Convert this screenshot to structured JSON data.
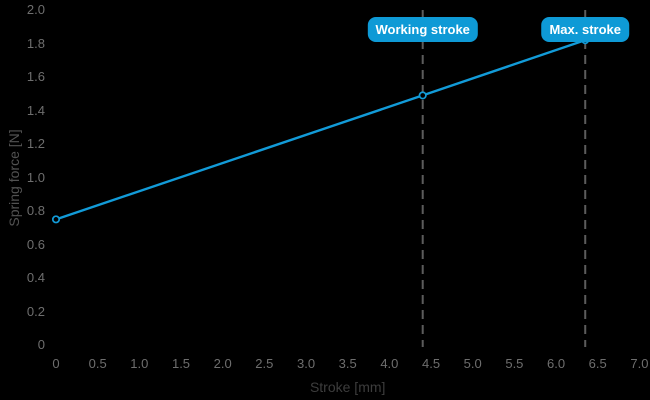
{
  "chart_data": {
    "type": "line",
    "title": "",
    "xlabel": "Stroke [mm]",
    "ylabel": "Spring force [N]",
    "xlim": [
      0,
      7
    ],
    "ylim": [
      0,
      2
    ],
    "grid": false,
    "legend": "none",
    "xticks": [
      {
        "v": 0,
        "label": "0"
      },
      {
        "v": 0.5,
        "label": "0.5"
      },
      {
        "v": 1.0,
        "label": "1.0"
      },
      {
        "v": 1.5,
        "label": "1.5"
      },
      {
        "v": 2.0,
        "label": "2.0"
      },
      {
        "v": 2.5,
        "label": "2.5"
      },
      {
        "v": 3.0,
        "label": "3.0"
      },
      {
        "v": 3.5,
        "label": "3.5"
      },
      {
        "v": 4.0,
        "label": "4.0"
      },
      {
        "v": 4.5,
        "label": "4.5"
      },
      {
        "v": 5.0,
        "label": "5.0"
      },
      {
        "v": 5.5,
        "label": "5.5"
      },
      {
        "v": 6.0,
        "label": "6.0"
      },
      {
        "v": 6.5,
        "label": "6.5"
      },
      {
        "v": 7.0,
        "label": "7.0"
      }
    ],
    "yticks": [
      {
        "v": 0,
        "label": "0"
      },
      {
        "v": 0.2,
        "label": "0.2"
      },
      {
        "v": 0.4,
        "label": "0.4"
      },
      {
        "v": 0.6,
        "label": "0.6"
      },
      {
        "v": 0.8,
        "label": "0.8"
      },
      {
        "v": 1.0,
        "label": "1.0"
      },
      {
        "v": 1.2,
        "label": "1.2"
      },
      {
        "v": 1.4,
        "label": "1.4"
      },
      {
        "v": 1.6,
        "label": "1.6"
      },
      {
        "v": 1.8,
        "label": "1.8"
      },
      {
        "v": 2.0,
        "label": "2.0"
      }
    ],
    "series": [
      {
        "name": "spring-force-line",
        "points": [
          {
            "x": 0,
            "y": 0.75
          },
          {
            "x": 4.4,
            "y": 1.49
          },
          {
            "x": 6.35,
            "y": 1.82
          }
        ]
      }
    ],
    "annotations": [
      {
        "label": "Working stroke",
        "x": 4.4
      },
      {
        "label": "Max. stroke",
        "x": 6.35
      }
    ]
  },
  "colors": {
    "background": "#000000",
    "line": "#129bd8",
    "marker_stroke": "#129bd8",
    "marker_fill": "#000000",
    "dashed_line": "#5c5c5c",
    "tick_label": "#6e6e6e",
    "x_axis_title": "#3d3d3d",
    "y_axis_title": "#525252",
    "badge_background": "#0e9ad6",
    "badge_text": "#ffffff"
  }
}
